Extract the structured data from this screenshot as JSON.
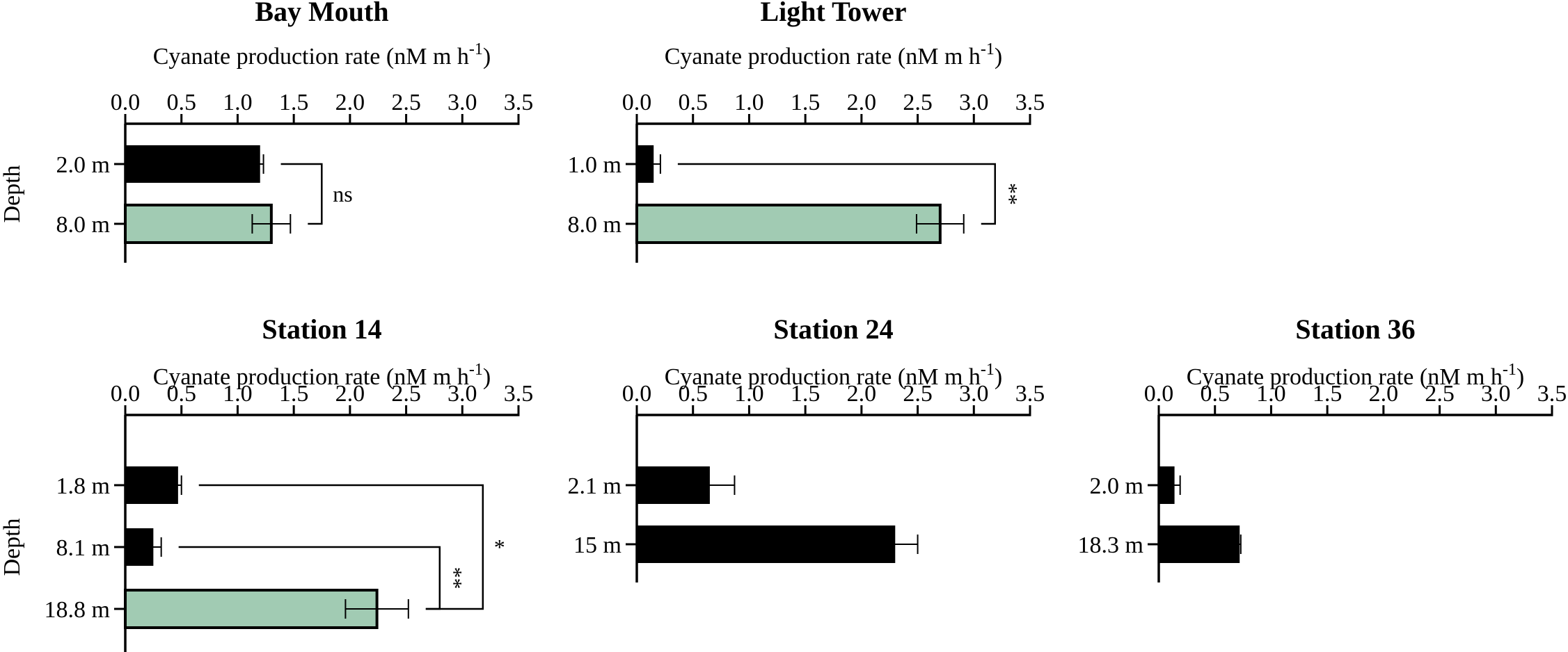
{
  "colors": {
    "bar_default": "#000000",
    "bar_highlight": "#a1cbb3",
    "axis": "#000000"
  },
  "chart_data": [
    {
      "type": "bar",
      "orientation": "horizontal",
      "title": "Bay Mouth",
      "xlabel": "Cyanate production rate (nM m h",
      "xlabel_sup": "-1",
      "xlabel_end": ")",
      "ylabel": "Depth",
      "xlim": [
        0,
        3.5
      ],
      "xticks": [
        "0.0",
        "0.5",
        "1.0",
        "1.5",
        "2.0",
        "2.5",
        "3.0",
        "3.5"
      ],
      "categories": [
        "2.0 m",
        "8.0 m"
      ],
      "values": [
        1.2,
        1.3
      ],
      "errors": [
        0.03,
        0.17
      ],
      "highlight": [
        false,
        true
      ],
      "significance": [
        {
          "from": 0,
          "to": 1,
          "label": "ns",
          "vertical": false
        }
      ]
    },
    {
      "type": "bar",
      "orientation": "horizontal",
      "title": "Light Tower",
      "xlabel": "Cyanate production rate (nM m h",
      "xlabel_sup": "-1",
      "xlabel_end": ")",
      "ylabel": "",
      "xlim": [
        0,
        3.5
      ],
      "xticks": [
        "0.0",
        "0.5",
        "1.0",
        "1.5",
        "2.0",
        "2.5",
        "3.0",
        "3.5"
      ],
      "categories": [
        "1.0 m",
        "8.0 m"
      ],
      "values": [
        0.15,
        2.7
      ],
      "errors": [
        0.06,
        0.21
      ],
      "highlight": [
        false,
        true
      ],
      "significance": [
        {
          "from": 0,
          "to": 1,
          "label": "**",
          "vertical": true
        }
      ]
    },
    {
      "type": "bar",
      "orientation": "horizontal",
      "title": "Station 14",
      "xlabel": "Cyanate production rate (nM m h",
      "xlabel_sup": "-1",
      "xlabel_end": ")",
      "ylabel": "Depth",
      "xlim": [
        0,
        3.5
      ],
      "xticks": [
        "0.0",
        "0.5",
        "1.0",
        "1.5",
        "2.0",
        "2.5",
        "3.0",
        "3.5"
      ],
      "categories": [
        "1.8 m",
        "8.1 m",
        "18.8 m"
      ],
      "values": [
        0.47,
        0.25,
        2.24
      ],
      "errors": [
        0.03,
        0.07,
        0.28
      ],
      "highlight": [
        false,
        false,
        true
      ],
      "significance": [
        {
          "from": 1,
          "to": 2,
          "label": "**",
          "vertical": true
        },
        {
          "from": 0,
          "to": 2,
          "label": "*",
          "vertical": false
        }
      ]
    },
    {
      "type": "bar",
      "orientation": "horizontal",
      "title": "Station 24",
      "xlabel": "Cyanate production rate (nM m h",
      "xlabel_sup": "-1",
      "xlabel_end": ")",
      "ylabel": "",
      "xlim": [
        0,
        3.5
      ],
      "xticks": [
        "0.0",
        "0.5",
        "1.0",
        "1.5",
        "2.0",
        "2.5",
        "3.0",
        "3.5"
      ],
      "categories": [
        "2.1 m",
        "15 m"
      ],
      "values": [
        0.65,
        2.3
      ],
      "errors": [
        0.22,
        0.2
      ],
      "highlight": [
        false,
        false
      ],
      "significance": []
    },
    {
      "type": "bar",
      "orientation": "horizontal",
      "title": "Station 36",
      "xlabel": "Cyanate production rate (nM m h",
      "xlabel_sup": "-1",
      "xlabel_end": ")",
      "ylabel": "",
      "xlim": [
        0,
        3.5
      ],
      "xticks": [
        "0.0",
        "0.5",
        "1.0",
        "1.5",
        "2.0",
        "2.5",
        "3.0",
        "3.5"
      ],
      "categories": [
        "2.0 m",
        "18.3 m"
      ],
      "values": [
        0.14,
        0.72
      ],
      "errors": [
        0.05,
        0.01
      ],
      "highlight": [
        false,
        false
      ],
      "significance": []
    }
  ]
}
